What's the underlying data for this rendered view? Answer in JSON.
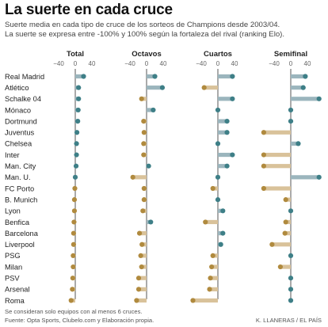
{
  "header": {
    "title": "La suerte en cada cruce",
    "subtitle_line1": "Suerte media en cada tipo de cruce de los sorteos de Champions desde  2003/04.",
    "subtitle_line2": "La suerte se expresa entre -100% y 100% según la fortaleza del rival (ranking Elo)."
  },
  "footer": {
    "note": "Se consideran solo equipos con al menos 6 cruces.",
    "source": "Fuente: Opta Sports, Clubelo.com y Elaboración propia.",
    "credit": "K. LLANERAS  /  EL PAÍS"
  },
  "colors": {
    "positive_bar": "#9bb5bd",
    "positive_dot": "#3e7f87",
    "negative_bar": "#d9c29a",
    "negative_dot": "#b08a3e",
    "axis": "#555555"
  },
  "chart_data": {
    "type": "dot-bar",
    "teams": [
      "Real Madrid",
      "Atlético",
      "Schalke 04",
      "Mónaco",
      "Dortmund",
      "Juventus",
      "Chelsea",
      "Inter",
      "Man. City",
      "Man. U.",
      "FC Porto",
      "B. Munich",
      "Lyon",
      "Benfica",
      "Barcelona",
      "Liverpool",
      "PSG",
      "Milan",
      "PSV",
      "Arsenal",
      "Roma"
    ],
    "tick_values": [
      -40,
      0,
      40
    ],
    "tick_labels": [
      "−40",
      "0",
      "40"
    ],
    "panels": [
      {
        "name": "Total",
        "values": [
          20,
          8,
          8,
          7,
          6,
          4,
          3,
          3,
          2,
          0,
          -1,
          -2,
          -2,
          -3,
          -4,
          -4,
          -5,
          -5,
          -6,
          -7,
          -10
        ]
      },
      {
        "name": "Octavos",
        "values": [
          20,
          38,
          -12,
          16,
          -7,
          -6,
          -7,
          -7,
          5,
          -33,
          -6,
          -6,
          -9,
          10,
          -17,
          -11,
          -14,
          -12,
          -19,
          -19,
          -24
        ]
      },
      {
        "name": "Cuartos",
        "values": [
          35,
          -33,
          35,
          0,
          22,
          22,
          0,
          35,
          22,
          0,
          -12,
          0,
          12,
          -30,
          12,
          7,
          -12,
          -15,
          -18,
          -20,
          -60
        ]
      },
      {
        "name": "Semifinal",
        "values": [
          35,
          30,
          68,
          0,
          0,
          -65,
          18,
          -65,
          -65,
          68,
          -65,
          -12,
          0,
          -12,
          -14,
          -45,
          0,
          -25,
          0,
          0,
          0
        ]
      }
    ]
  }
}
